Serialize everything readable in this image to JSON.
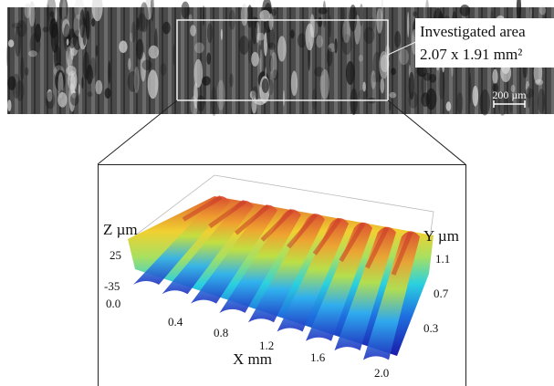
{
  "micrograph": {
    "annotation": {
      "line1": "Investigated area",
      "line2": "2.07 x 1.91 mm²"
    },
    "scale_bar": "200 µm"
  },
  "surface_plot": {
    "z_label": "Z µm",
    "z_ticks": [
      "25",
      "-35"
    ],
    "y_label": "Y µm",
    "y_ticks": [
      "1.1",
      "0.7",
      "0.3"
    ],
    "x_label": "X mm",
    "x_ticks": [
      "0.0",
      "0.4",
      "0.8",
      "1.2",
      "1.6",
      "2.0"
    ]
  }
}
